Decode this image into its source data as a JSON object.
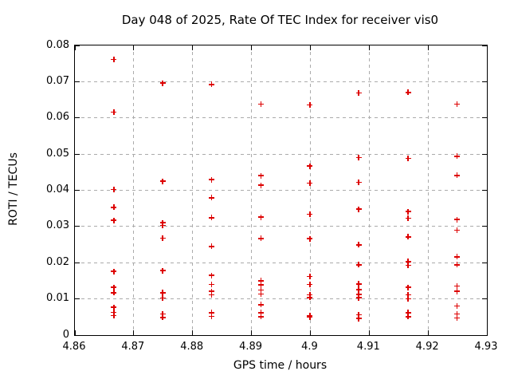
{
  "chart_data": {
    "type": "scatter",
    "title": "Day 048 of 2025, Rate Of TEC Index for receiver vis0",
    "xlabel": "GPS time / hours",
    "ylabel": "ROTI / TECUs",
    "xlim": [
      4.86,
      4.93
    ],
    "ylim": [
      0,
      0.08
    ],
    "xticks": [
      4.86,
      4.87,
      4.88,
      4.89,
      4.9,
      4.91,
      4.92,
      4.93
    ],
    "xtick_labels": [
      "4.86",
      "4.87",
      "4.88",
      "4.89",
      "4.9",
      "4.91",
      "4.92",
      "4.93"
    ],
    "yticks": [
      0,
      0.01,
      0.02,
      0.03,
      0.04,
      0.05,
      0.06,
      0.07,
      0.08
    ],
    "ytick_labels": [
      "0",
      "0.01",
      "0.02",
      "0.03",
      "0.04",
      "0.05",
      "0.06",
      "0.07",
      "0.08"
    ],
    "grid": true,
    "legend": "none",
    "marker": "plus",
    "marker_color": "#dd0000",
    "series": [
      {
        "name": "ROTI",
        "groups": [
          {
            "x": 4.8667,
            "y": [
              0.076,
              0.0615,
              0.0401,
              0.0352,
              0.0316,
              0.0175,
              0.0131,
              0.0116,
              0.0076,
              0.0062,
              0.0053
            ]
          },
          {
            "x": 4.875,
            "y": [
              0.0695,
              0.0424,
              0.0309,
              0.0302,
              0.0267,
              0.0177,
              0.0116,
              0.0101,
              0.0057,
              0.0048
            ]
          },
          {
            "x": 4.8833,
            "y": [
              0.0691,
              0.0428,
              0.0378,
              0.0323,
              0.0244,
              0.0164,
              0.0139,
              0.012,
              0.011,
              0.0061,
              0.0051
            ]
          },
          {
            "x": 4.8917,
            "y": [
              0.0637,
              0.0439,
              0.0413,
              0.0325,
              0.0266,
              0.0149,
              0.0138,
              0.0123,
              0.0112,
              0.0083,
              0.0061,
              0.005
            ]
          },
          {
            "x": 4.9,
            "y": [
              0.0635,
              0.0466,
              0.0419,
              0.0333,
              0.0265,
              0.0161,
              0.0139,
              0.011,
              0.0103,
              0.0053,
              0.0049
            ]
          },
          {
            "x": 4.9083,
            "y": [
              0.0668,
              0.0489,
              0.0421,
              0.0347,
              0.0248,
              0.0193,
              0.014,
              0.0125,
              0.0111,
              0.0102,
              0.0055,
              0.0045
            ]
          },
          {
            "x": 4.9167,
            "y": [
              0.0669,
              0.0487,
              0.034,
              0.0322,
              0.027,
              0.0202,
              0.0192,
              0.0131,
              0.011,
              0.0099,
              0.0061,
              0.005
            ]
          },
          {
            "x": 4.925,
            "y": [
              0.0637,
              0.0493,
              0.044,
              0.0318,
              0.0289,
              0.0215,
              0.0193,
              0.0134,
              0.012,
              0.0079,
              0.0057,
              0.0046
            ]
          }
        ]
      }
    ]
  }
}
